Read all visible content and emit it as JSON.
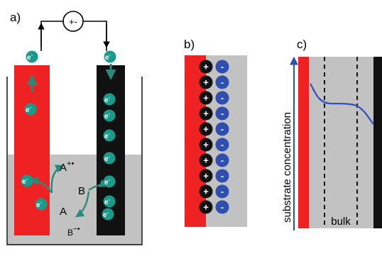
{
  "panel_a": {
    "label": "a)",
    "source_symbol": "+-",
    "electron": "e",
    "electron_charge": "-",
    "species_a": "A",
    "species_a_ox": "A",
    "species_a_ox_charge": "+•",
    "species_b": "B",
    "species_b_red": "B",
    "species_b_red_charge": "−•"
  },
  "panel_b": {
    "label": "b)",
    "positive_symbol": "+",
    "negative_symbol": "-"
  },
  "panel_c": {
    "label": "c)",
    "y_axis_label": "substrate concentration",
    "region_label": "bulk"
  },
  "colors": {
    "anode": "#ee2222",
    "cathode": "#111111",
    "electrolyte": "#c2c2c2",
    "electron": "#1a9a8a",
    "arrow": "#2a8a7a",
    "anion": "#2f4fb0",
    "curve": "#3050c0"
  }
}
